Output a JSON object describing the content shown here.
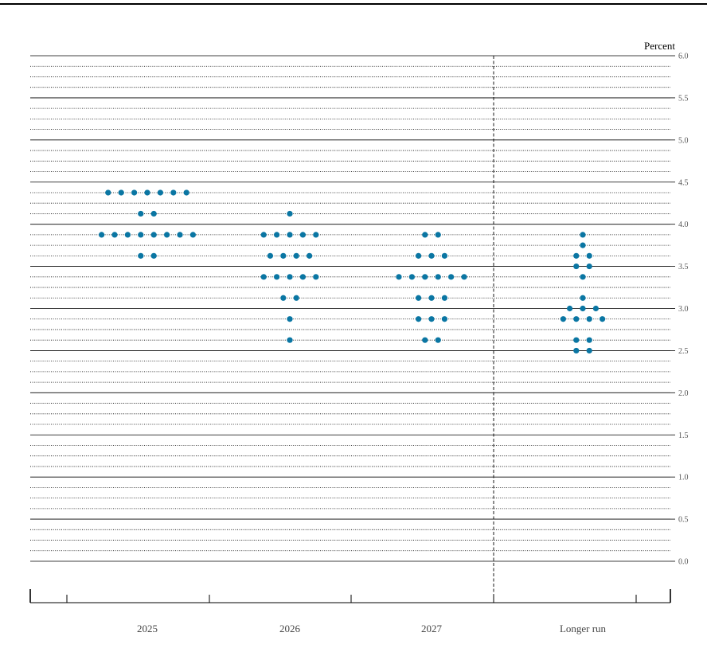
{
  "chart_data": {
    "type": "scatter",
    "ylabel": "Percent",
    "ylim": [
      0.0,
      6.0
    ],
    "y_tick_step": 0.125,
    "y_ticks": [
      "6.0",
      "5.5",
      "5.0",
      "4.5",
      "4.0",
      "3.5",
      "3.0",
      "2.5",
      "2.0",
      "1.5",
      "1.0",
      "0.5",
      "0.0"
    ],
    "categories": [
      "2025",
      "2026",
      "2027",
      "Longer run"
    ],
    "dot_color": "#0a76a3",
    "longer_run_separator": "dashed",
    "series": [
      {
        "category": "2025",
        "points": [
          {
            "y": 4.375,
            "count": 7
          },
          {
            "y": 4.125,
            "count": 2
          },
          {
            "y": 3.875,
            "count": 8
          },
          {
            "y": 3.625,
            "count": 2
          }
        ]
      },
      {
        "category": "2026",
        "points": [
          {
            "y": 4.125,
            "count": 1
          },
          {
            "y": 3.875,
            "count": 5
          },
          {
            "y": 3.625,
            "count": 4
          },
          {
            "y": 3.375,
            "count": 5
          },
          {
            "y": 3.125,
            "count": 2
          },
          {
            "y": 2.875,
            "count": 1
          },
          {
            "y": 2.625,
            "count": 1
          }
        ]
      },
      {
        "category": "2027",
        "points": [
          {
            "y": 3.875,
            "count": 2
          },
          {
            "y": 3.625,
            "count": 3
          },
          {
            "y": 3.375,
            "count": 6
          },
          {
            "y": 3.125,
            "count": 3
          },
          {
            "y": 2.875,
            "count": 3
          },
          {
            "y": 2.625,
            "count": 2
          }
        ]
      },
      {
        "category": "Longer run",
        "points": [
          {
            "y": 3.875,
            "count": 1
          },
          {
            "y": 3.75,
            "count": 1
          },
          {
            "y": 3.625,
            "count": 2
          },
          {
            "y": 3.5,
            "count": 2
          },
          {
            "y": 3.375,
            "count": 1
          },
          {
            "y": 3.125,
            "count": 1
          },
          {
            "y": 3.0,
            "count": 3
          },
          {
            "y": 2.875,
            "count": 4
          },
          {
            "y": 2.625,
            "count": 2
          },
          {
            "y": 2.5,
            "count": 2
          }
        ]
      }
    ]
  }
}
